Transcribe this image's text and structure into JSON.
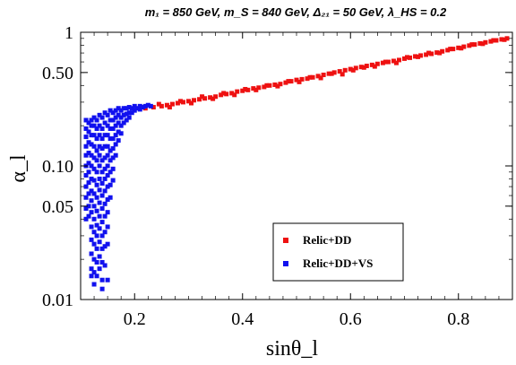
{
  "chart_data": {
    "type": "scatter",
    "title": "m₁ = 850 GeV, m_S = 840 GeV, Δ₂₁ = 50 GeV, λ_HS = 0.2",
    "xlabel": "sinθ_l",
    "ylabel": "α_l",
    "xlim": [
      0.1,
      0.9
    ],
    "ylim": [
      0.01,
      1
    ],
    "y_scale": "log",
    "x_ticks": [
      0.2,
      0.4,
      0.6,
      0.8
    ],
    "x_tick_labels": [
      "0.2",
      "0.4",
      "0.6",
      "0.8"
    ],
    "y_ticks": [
      0.01,
      0.05,
      0.1,
      0.5,
      1
    ],
    "y_tick_labels": [
      "0.01",
      "0.05",
      "0.10",
      "0.50",
      "1"
    ],
    "grid": false,
    "legend_position": "bottom-right",
    "series": [
      {
        "name": "Relic+DD",
        "color": "#ee1111",
        "points": [
          [
            0.22,
            0.27
          ],
          [
            0.235,
            0.275
          ],
          [
            0.25,
            0.28
          ],
          [
            0.26,
            0.285
          ],
          [
            0.27,
            0.29
          ],
          [
            0.28,
            0.295
          ],
          [
            0.29,
            0.3
          ],
          [
            0.3,
            0.305
          ],
          [
            0.31,
            0.31
          ],
          [
            0.32,
            0.315
          ],
          [
            0.33,
            0.32
          ],
          [
            0.34,
            0.325
          ],
          [
            0.35,
            0.33
          ],
          [
            0.36,
            0.34
          ],
          [
            0.37,
            0.345
          ],
          [
            0.38,
            0.35
          ],
          [
            0.39,
            0.36
          ],
          [
            0.4,
            0.365
          ],
          [
            0.41,
            0.37
          ],
          [
            0.42,
            0.38
          ],
          [
            0.43,
            0.385
          ],
          [
            0.44,
            0.39
          ],
          [
            0.45,
            0.4
          ],
          [
            0.46,
            0.405
          ],
          [
            0.47,
            0.41
          ],
          [
            0.48,
            0.42
          ],
          [
            0.49,
            0.43
          ],
          [
            0.5,
            0.44
          ],
          [
            0.51,
            0.445
          ],
          [
            0.52,
            0.45
          ],
          [
            0.53,
            0.46
          ],
          [
            0.54,
            0.47
          ],
          [
            0.55,
            0.48
          ],
          [
            0.56,
            0.49
          ],
          [
            0.57,
            0.5
          ],
          [
            0.58,
            0.51
          ],
          [
            0.59,
            0.52
          ],
          [
            0.6,
            0.53
          ],
          [
            0.61,
            0.54
          ],
          [
            0.62,
            0.55
          ],
          [
            0.63,
            0.56
          ],
          [
            0.64,
            0.57
          ],
          [
            0.65,
            0.58
          ],
          [
            0.66,
            0.59
          ],
          [
            0.67,
            0.6
          ],
          [
            0.68,
            0.61
          ],
          [
            0.69,
            0.62
          ],
          [
            0.7,
            0.635
          ],
          [
            0.71,
            0.645
          ],
          [
            0.72,
            0.66
          ],
          [
            0.73,
            0.67
          ],
          [
            0.74,
            0.68
          ],
          [
            0.75,
            0.69
          ],
          [
            0.76,
            0.705
          ],
          [
            0.77,
            0.72
          ],
          [
            0.78,
            0.735
          ],
          [
            0.79,
            0.75
          ],
          [
            0.8,
            0.765
          ],
          [
            0.81,
            0.78
          ],
          [
            0.82,
            0.795
          ],
          [
            0.83,
            0.81
          ],
          [
            0.84,
            0.825
          ],
          [
            0.85,
            0.84
          ],
          [
            0.86,
            0.855
          ],
          [
            0.87,
            0.87
          ],
          [
            0.88,
            0.885
          ],
          [
            0.89,
            0.9
          ],
          [
            0.245,
            0.29
          ],
          [
            0.265,
            0.275
          ],
          [
            0.285,
            0.305
          ],
          [
            0.305,
            0.295
          ],
          [
            0.325,
            0.33
          ],
          [
            0.345,
            0.318
          ],
          [
            0.365,
            0.35
          ],
          [
            0.385,
            0.34
          ],
          [
            0.405,
            0.375
          ],
          [
            0.425,
            0.37
          ],
          [
            0.445,
            0.4
          ],
          [
            0.465,
            0.395
          ],
          [
            0.485,
            0.43
          ],
          [
            0.505,
            0.425
          ],
          [
            0.525,
            0.46
          ],
          [
            0.545,
            0.455
          ],
          [
            0.565,
            0.49
          ],
          [
            0.585,
            0.485
          ],
          [
            0.605,
            0.52
          ],
          [
            0.625,
            0.545
          ],
          [
            0.645,
            0.555
          ],
          [
            0.665,
            0.6
          ],
          [
            0.685,
            0.59
          ],
          [
            0.705,
            0.65
          ],
          [
            0.725,
            0.655
          ],
          [
            0.745,
            0.7
          ],
          [
            0.765,
            0.7
          ],
          [
            0.785,
            0.75
          ],
          [
            0.805,
            0.76
          ],
          [
            0.825,
            0.81
          ],
          [
            0.845,
            0.82
          ],
          [
            0.865,
            0.87
          ],
          [
            0.885,
            0.88
          ]
        ]
      },
      {
        "name": "Relic+DD+VS",
        "color": "#1111ee",
        "points": [
          [
            0.11,
            0.22
          ],
          [
            0.11,
            0.19
          ],
          [
            0.11,
            0.165
          ],
          [
            0.11,
            0.14
          ],
          [
            0.11,
            0.12
          ],
          [
            0.11,
            0.1
          ],
          [
            0.11,
            0.085
          ],
          [
            0.11,
            0.07
          ],
          [
            0.11,
            0.058
          ],
          [
            0.11,
            0.048
          ],
          [
            0.11,
            0.04
          ],
          [
            0.115,
            0.21
          ],
          [
            0.115,
            0.18
          ],
          [
            0.115,
            0.15
          ],
          [
            0.115,
            0.125
          ],
          [
            0.115,
            0.105
          ],
          [
            0.115,
            0.09
          ],
          [
            0.115,
            0.075
          ],
          [
            0.115,
            0.062
          ],
          [
            0.115,
            0.05
          ],
          [
            0.115,
            0.042
          ],
          [
            0.12,
            0.22
          ],
          [
            0.12,
            0.2
          ],
          [
            0.12,
            0.17
          ],
          [
            0.12,
            0.145
          ],
          [
            0.12,
            0.12
          ],
          [
            0.12,
            0.1
          ],
          [
            0.12,
            0.08
          ],
          [
            0.12,
            0.065
          ],
          [
            0.12,
            0.055
          ],
          [
            0.12,
            0.045
          ],
          [
            0.12,
            0.035
          ],
          [
            0.12,
            0.028
          ],
          [
            0.12,
            0.022
          ],
          [
            0.12,
            0.017
          ],
          [
            0.12,
            0.015
          ],
          [
            0.125,
            0.23
          ],
          [
            0.125,
            0.2
          ],
          [
            0.125,
            0.17
          ],
          [
            0.125,
            0.14
          ],
          [
            0.125,
            0.115
          ],
          [
            0.125,
            0.095
          ],
          [
            0.125,
            0.078
          ],
          [
            0.125,
            0.062
          ],
          [
            0.125,
            0.05
          ],
          [
            0.125,
            0.04
          ],
          [
            0.125,
            0.032
          ],
          [
            0.125,
            0.026
          ],
          [
            0.125,
            0.02
          ],
          [
            0.125,
            0.016
          ],
          [
            0.125,
            0.013
          ],
          [
            0.13,
            0.22
          ],
          [
            0.13,
            0.19
          ],
          [
            0.13,
            0.16
          ],
          [
            0.13,
            0.13
          ],
          [
            0.13,
            0.11
          ],
          [
            0.13,
            0.09
          ],
          [
            0.13,
            0.072
          ],
          [
            0.13,
            0.058
          ],
          [
            0.13,
            0.046
          ],
          [
            0.13,
            0.036
          ],
          [
            0.13,
            0.03
          ],
          [
            0.13,
            0.024
          ],
          [
            0.13,
            0.019
          ],
          [
            0.13,
            0.015
          ],
          [
            0.135,
            0.24
          ],
          [
            0.135,
            0.2
          ],
          [
            0.135,
            0.17
          ],
          [
            0.135,
            0.14
          ],
          [
            0.135,
            0.12
          ],
          [
            0.135,
            0.1
          ],
          [
            0.135,
            0.08
          ],
          [
            0.135,
            0.066
          ],
          [
            0.135,
            0.053
          ],
          [
            0.135,
            0.042
          ],
          [
            0.135,
            0.034
          ],
          [
            0.135,
            0.027
          ],
          [
            0.135,
            0.021
          ],
          [
            0.135,
            0.017
          ],
          [
            0.14,
            0.23
          ],
          [
            0.14,
            0.19
          ],
          [
            0.14,
            0.16
          ],
          [
            0.14,
            0.135
          ],
          [
            0.14,
            0.11
          ],
          [
            0.14,
            0.09
          ],
          [
            0.14,
            0.074
          ],
          [
            0.14,
            0.06
          ],
          [
            0.14,
            0.048
          ],
          [
            0.14,
            0.038
          ],
          [
            0.14,
            0.03
          ],
          [
            0.14,
            0.024
          ],
          [
            0.14,
            0.019
          ],
          [
            0.14,
            0.014
          ],
          [
            0.14,
            0.012
          ],
          [
            0.145,
            0.25
          ],
          [
            0.145,
            0.21
          ],
          [
            0.145,
            0.17
          ],
          [
            0.145,
            0.14
          ],
          [
            0.145,
            0.115
          ],
          [
            0.145,
            0.095
          ],
          [
            0.145,
            0.08
          ],
          [
            0.145,
            0.065
          ],
          [
            0.145,
            0.052
          ],
          [
            0.145,
            0.042
          ],
          [
            0.145,
            0.032
          ],
          [
            0.145,
            0.025
          ],
          [
            0.145,
            0.018
          ],
          [
            0.15,
            0.24
          ],
          [
            0.15,
            0.2
          ],
          [
            0.15,
            0.17
          ],
          [
            0.15,
            0.14
          ],
          [
            0.15,
            0.12
          ],
          [
            0.15,
            0.1
          ],
          [
            0.15,
            0.085
          ],
          [
            0.15,
            0.07
          ],
          [
            0.15,
            0.056
          ],
          [
            0.15,
            0.045
          ],
          [
            0.15,
            0.035
          ],
          [
            0.15,
            0.026
          ],
          [
            0.15,
            0.014
          ],
          [
            0.155,
            0.26
          ],
          [
            0.155,
            0.22
          ],
          [
            0.155,
            0.19
          ],
          [
            0.155,
            0.16
          ],
          [
            0.155,
            0.13
          ],
          [
            0.155,
            0.11
          ],
          [
            0.155,
            0.09
          ],
          [
            0.155,
            0.072
          ],
          [
            0.155,
            0.058
          ],
          [
            0.16,
            0.25
          ],
          [
            0.16,
            0.22
          ],
          [
            0.16,
            0.19
          ],
          [
            0.16,
            0.16
          ],
          [
            0.16,
            0.135
          ],
          [
            0.16,
            0.115
          ],
          [
            0.16,
            0.095
          ],
          [
            0.16,
            0.078
          ],
          [
            0.165,
            0.26
          ],
          [
            0.165,
            0.23
          ],
          [
            0.165,
            0.2
          ],
          [
            0.165,
            0.17
          ],
          [
            0.165,
            0.145
          ],
          [
            0.165,
            0.12
          ],
          [
            0.17,
            0.27
          ],
          [
            0.17,
            0.24
          ],
          [
            0.17,
            0.21
          ],
          [
            0.17,
            0.18
          ],
          [
            0.17,
            0.155
          ],
          [
            0.175,
            0.26
          ],
          [
            0.175,
            0.23
          ],
          [
            0.175,
            0.2
          ],
          [
            0.175,
            0.175
          ],
          [
            0.18,
            0.27
          ],
          [
            0.18,
            0.24
          ],
          [
            0.18,
            0.21
          ],
          [
            0.185,
            0.27
          ],
          [
            0.185,
            0.245
          ],
          [
            0.185,
            0.22
          ],
          [
            0.19,
            0.275
          ],
          [
            0.19,
            0.25
          ],
          [
            0.19,
            0.23
          ],
          [
            0.195,
            0.27
          ],
          [
            0.195,
            0.25
          ],
          [
            0.2,
            0.28
          ],
          [
            0.2,
            0.26
          ],
          [
            0.205,
            0.27
          ],
          [
            0.21,
            0.28
          ],
          [
            0.21,
            0.265
          ],
          [
            0.215,
            0.275
          ],
          [
            0.22,
            0.28
          ],
          [
            0.225,
            0.285
          ],
          [
            0.23,
            0.28
          ]
        ]
      }
    ]
  }
}
